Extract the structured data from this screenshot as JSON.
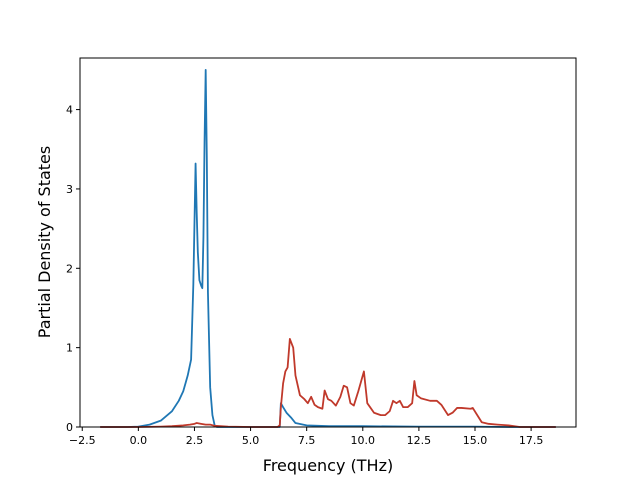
{
  "chart_data": {
    "type": "line",
    "xlabel": "Frequency (THz)",
    "ylabel": "Partial Density of States",
    "xlim": [
      -2.6,
      19.5
    ],
    "ylim": [
      0,
      4.65
    ],
    "xticks": [
      -2.5,
      0.0,
      2.5,
      5.0,
      7.5,
      10.0,
      12.5,
      15.0,
      17.5
    ],
    "xtick_labels": [
      "−2.5",
      "0.0",
      "2.5",
      "5.0",
      "7.5",
      "10.0",
      "12.5",
      "15.0",
      "17.5"
    ],
    "yticks": [
      0,
      1,
      2,
      3,
      4
    ],
    "ytick_labels": [
      "0",
      "1",
      "2",
      "3",
      "4"
    ],
    "grid": false,
    "series": [
      {
        "color": "#1f77b4",
        "x": [
          -1.7,
          -0.5,
          0.0,
          0.5,
          1.0,
          1.5,
          1.8,
          2.0,
          2.2,
          2.35,
          2.45,
          2.55,
          2.6,
          2.65,
          2.72,
          2.8,
          2.85,
          2.9,
          2.95,
          3.0,
          3.05,
          3.1,
          3.15,
          3.2,
          3.3,
          3.4,
          3.5,
          4.5,
          6.3,
          6.35,
          6.45,
          6.6,
          6.8,
          7.0,
          7.5,
          8.5,
          10.0,
          12.5,
          15.0,
          16.5,
          18.6
        ],
        "y": [
          0.0,
          0.0,
          0.005,
          0.03,
          0.08,
          0.2,
          0.33,
          0.45,
          0.65,
          0.85,
          1.8,
          3.32,
          2.7,
          2.2,
          1.85,
          1.78,
          1.75,
          2.4,
          3.6,
          4.5,
          3.4,
          1.7,
          1.1,
          0.5,
          0.15,
          0.02,
          0.0,
          0.0,
          0.0,
          0.3,
          0.25,
          0.18,
          0.12,
          0.05,
          0.02,
          0.01,
          0.01,
          0.005,
          0.005,
          0.0,
          0.0
        ]
      },
      {
        "color": "#c0392b",
        "x": [
          -1.7,
          0.0,
          1.0,
          1.5,
          2.0,
          2.3,
          2.5,
          2.6,
          2.8,
          3.0,
          3.2,
          3.4,
          4.0,
          5.0,
          6.2,
          6.3,
          6.35,
          6.45,
          6.55,
          6.65,
          6.75,
          6.9,
          7.0,
          7.2,
          7.4,
          7.55,
          7.7,
          7.85,
          8.0,
          8.2,
          8.3,
          8.45,
          8.6,
          8.8,
          9.0,
          9.15,
          9.3,
          9.45,
          9.6,
          9.8,
          9.95,
          10.05,
          10.2,
          10.5,
          10.8,
          11.0,
          11.2,
          11.35,
          11.5,
          11.65,
          11.8,
          12.0,
          12.2,
          12.3,
          12.4,
          12.6,
          13.0,
          13.3,
          13.5,
          13.8,
          14.0,
          14.2,
          14.4,
          14.8,
          14.9,
          15.1,
          15.3,
          15.6,
          16.0,
          16.5,
          17.0,
          18.6
        ],
        "y": [
          0.0,
          0.0,
          0.005,
          0.01,
          0.02,
          0.03,
          0.04,
          0.05,
          0.04,
          0.03,
          0.03,
          0.015,
          0.005,
          0.0,
          0.0,
          0.02,
          0.25,
          0.55,
          0.7,
          0.75,
          1.11,
          1.0,
          0.65,
          0.4,
          0.35,
          0.3,
          0.38,
          0.28,
          0.25,
          0.23,
          0.46,
          0.35,
          0.33,
          0.27,
          0.38,
          0.52,
          0.5,
          0.3,
          0.27,
          0.45,
          0.6,
          0.7,
          0.3,
          0.18,
          0.15,
          0.15,
          0.2,
          0.33,
          0.3,
          0.33,
          0.25,
          0.25,
          0.3,
          0.58,
          0.4,
          0.36,
          0.33,
          0.33,
          0.28,
          0.15,
          0.18,
          0.24,
          0.24,
          0.23,
          0.24,
          0.15,
          0.06,
          0.04,
          0.03,
          0.02,
          0.0,
          0.0
        ]
      }
    ]
  }
}
